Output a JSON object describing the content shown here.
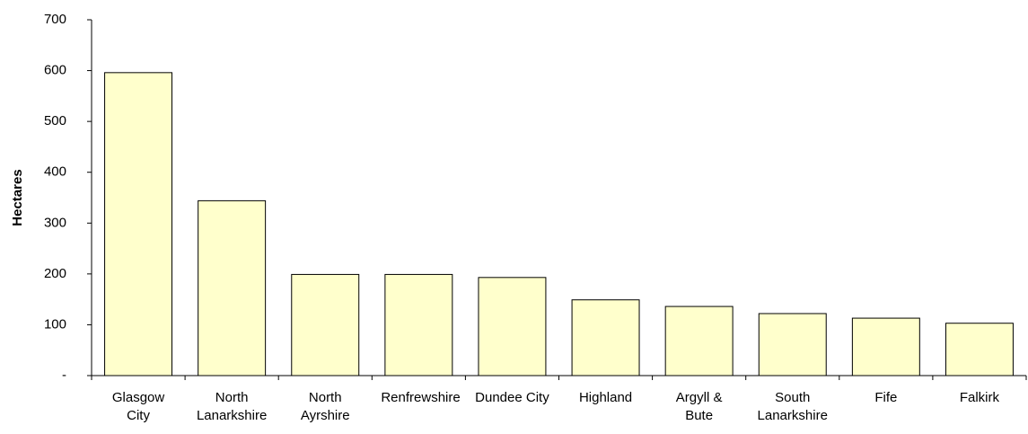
{
  "chart_data": {
    "type": "bar",
    "y_label": "Hectares",
    "categories": [
      "Glasgow City",
      "North Lanarkshire",
      "North Ayrshire",
      "Renfrewshire",
      "Dundee City",
      "Highland",
      "Argyll & Bute",
      "South Lanarkshire",
      "Fife",
      "Falkirk"
    ],
    "values": [
      596,
      344,
      199,
      199,
      193,
      149,
      136,
      122,
      113,
      103
    ],
    "color": "#ffffcc",
    "ylim": [
      0,
      700
    ],
    "yticks": [
      {
        "value": 0,
        "label": "-"
      },
      100,
      200,
      300,
      400,
      500,
      600,
      700
    ],
    "grid": false
  }
}
